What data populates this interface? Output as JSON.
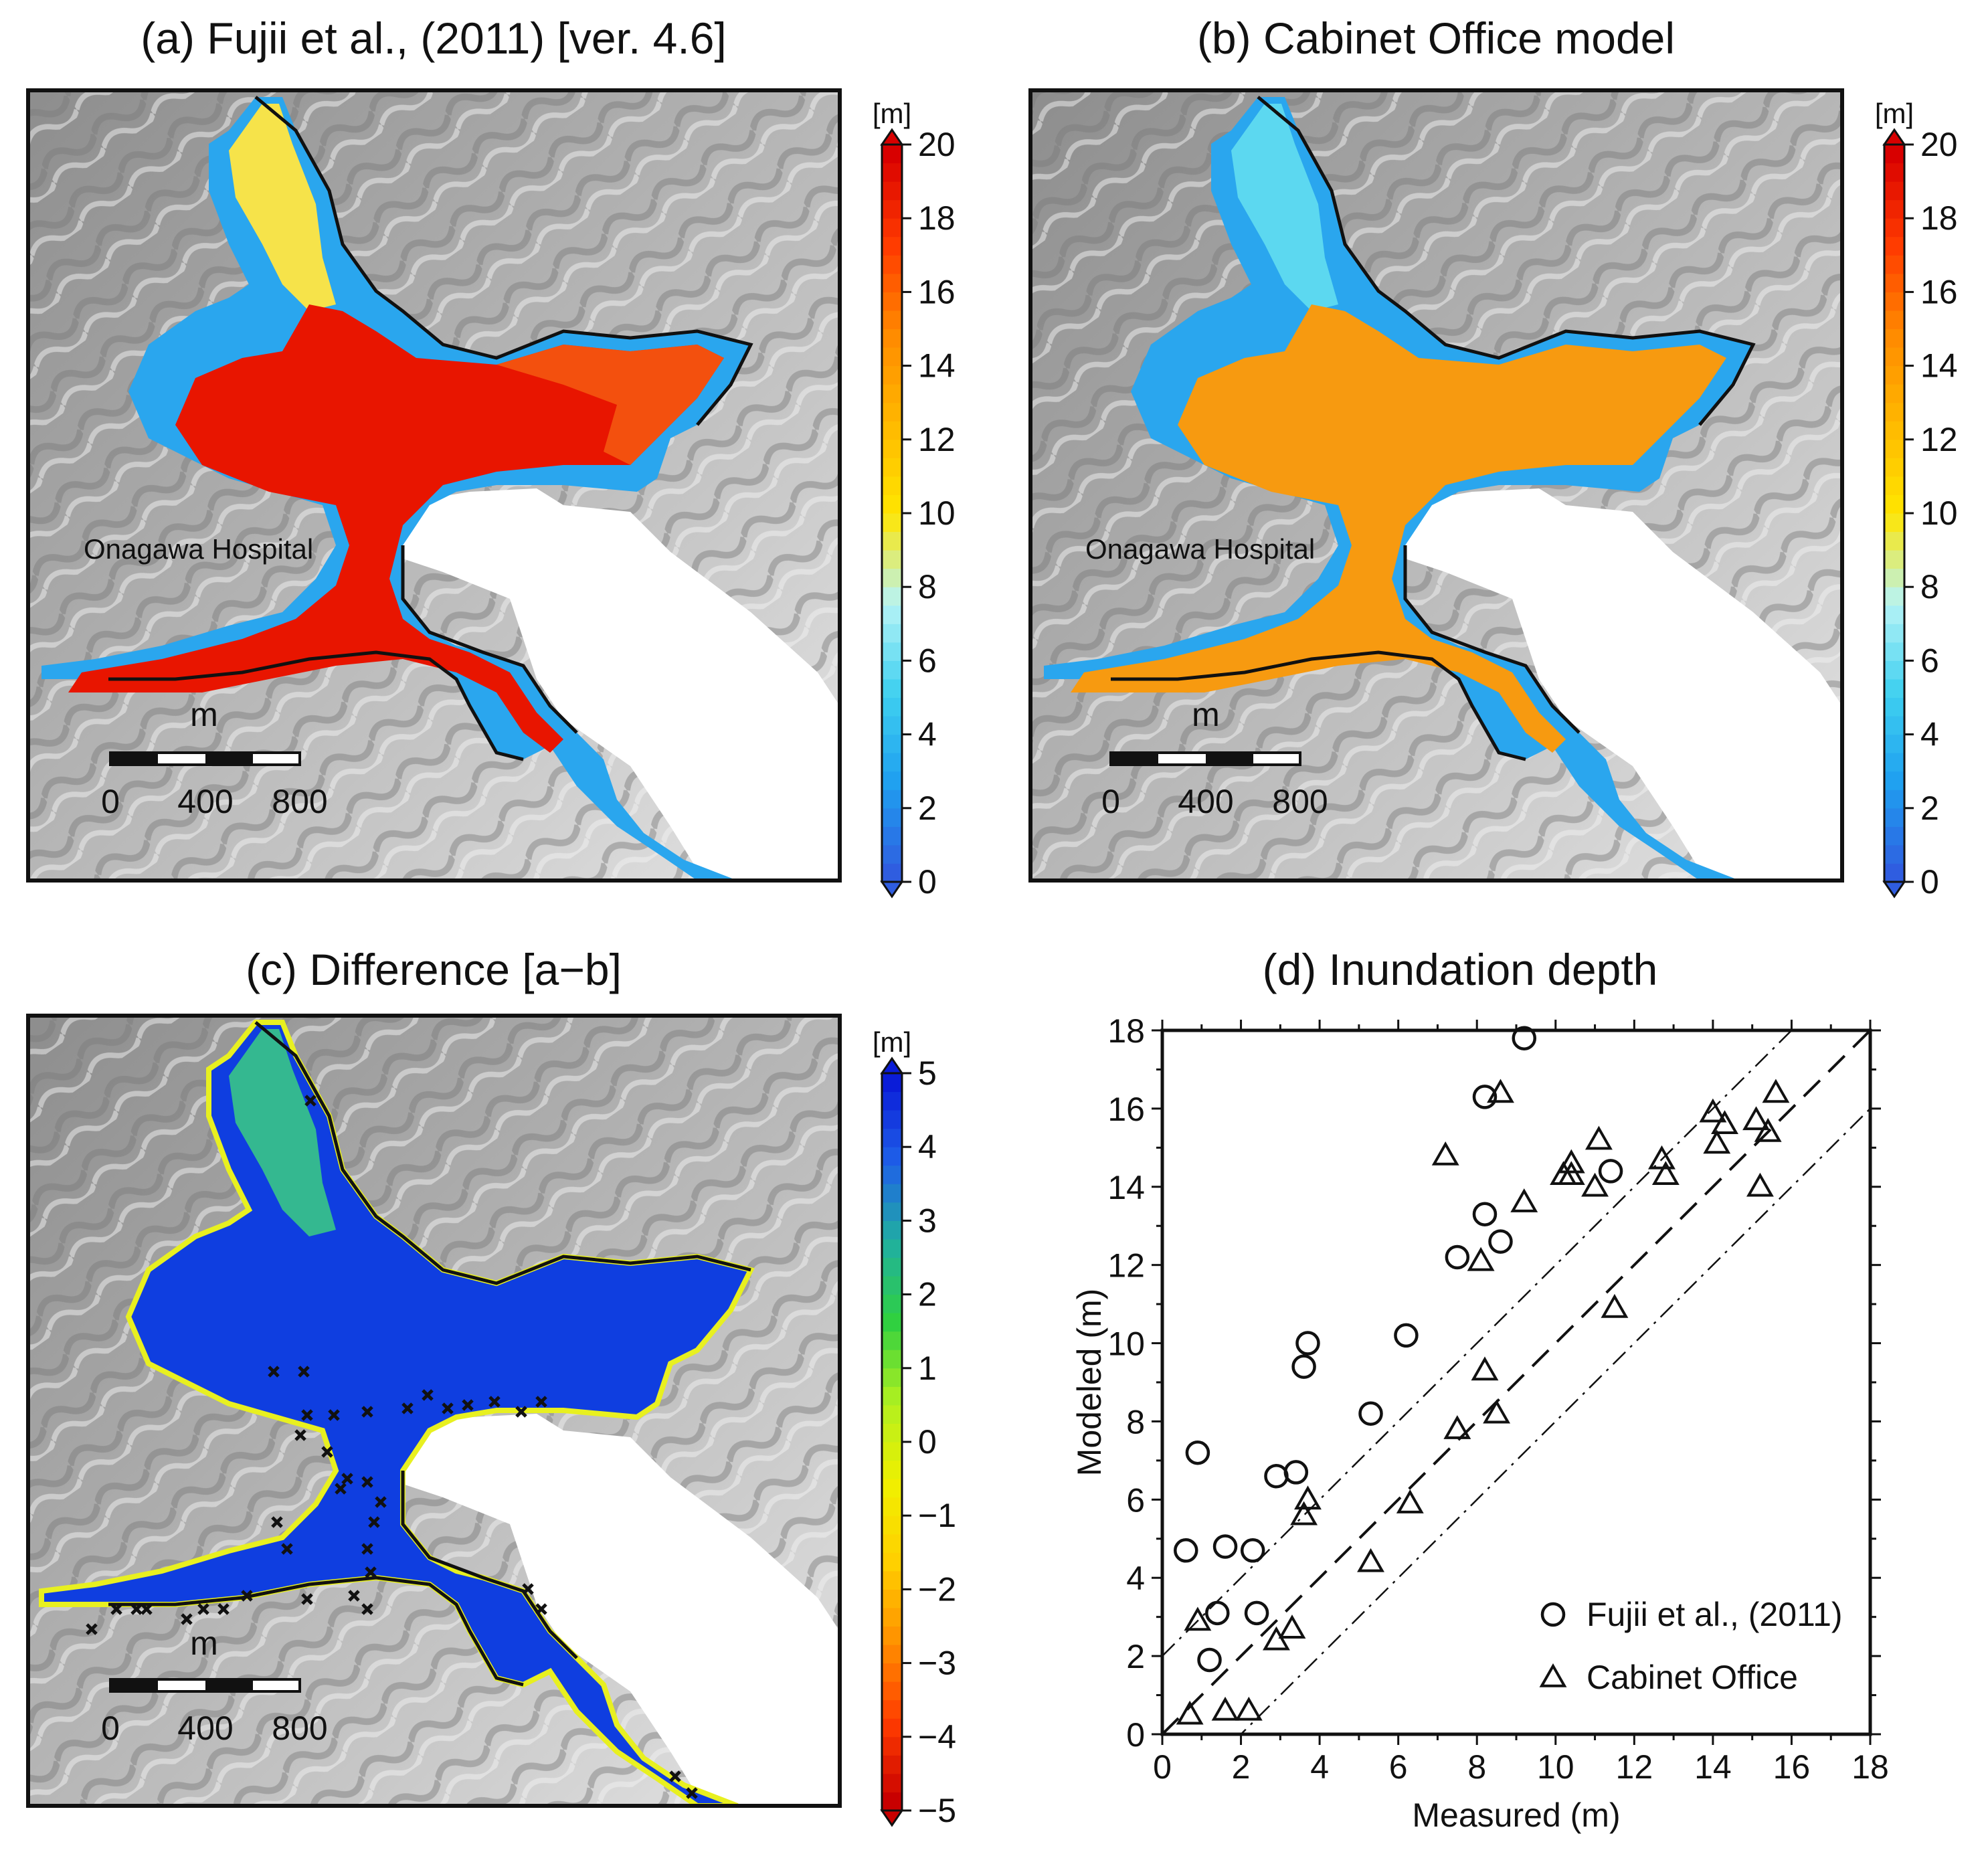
{
  "panels": {
    "a": {
      "title": "(a) Fujii et al., (2011) [ver. 4.6]",
      "place_label": "Onagawa Hospital"
    },
    "b": {
      "title": "(b) Cabinet Office model",
      "place_label": "Onagawa Hospital"
    },
    "c": {
      "title": "(c) Difference [a−b]"
    },
    "d": {
      "title": "(d) Inundation depth"
    }
  },
  "scalebar": {
    "unit": "m",
    "labels": [
      "0",
      "400",
      "800"
    ]
  },
  "colorbars": {
    "depth": {
      "unit": "[m]",
      "min": 0,
      "max": 20,
      "ticks": [
        "0",
        "2",
        "4",
        "6",
        "8",
        "10",
        "12",
        "14",
        "16",
        "18",
        "20"
      ],
      "colors": [
        "#2f5de0",
        "#1fa0f0",
        "#3fd0f0",
        "#b8f4f6",
        "#ffe600",
        "#ffb800",
        "#ff8a00",
        "#ff3a00",
        "#d80000"
      ]
    },
    "difference": {
      "unit": "[m]",
      "min": -5,
      "max": 5,
      "ticks": [
        "−5",
        "−4",
        "−3",
        "−2",
        "−1",
        "0",
        "1",
        "2",
        "3",
        "4",
        "5"
      ],
      "colors": [
        "#c80000",
        "#ff3c00",
        "#ff9000",
        "#ffd000",
        "#f0f000",
        "#b0f020",
        "#30d040",
        "#20b0a0",
        "#1f60e8",
        "#0a1cd8"
      ]
    }
  },
  "chart_data": {
    "type": "scatter",
    "title": "(d) Inundation depth",
    "xlabel": "Measured (m)",
    "ylabel": "Modeled (m)",
    "xlim": [
      0,
      18
    ],
    "ylim": [
      0,
      18
    ],
    "xticks": [
      "0",
      "2",
      "4",
      "6",
      "8",
      "10",
      "12",
      "14",
      "16",
      "18"
    ],
    "yticks": [
      "0",
      "2",
      "4",
      "6",
      "8",
      "10",
      "12",
      "14",
      "16",
      "18"
    ],
    "legend_position": "bottom-right",
    "reference_lines": [
      {
        "style": "dashed",
        "intercept": 0
      },
      {
        "style": "dash-dot",
        "intercept": 2
      },
      {
        "style": "dash-dot",
        "intercept": -2
      }
    ],
    "series": [
      {
        "name": "Fujii et al., (2011)",
        "marker": "circle",
        "x": [
          0.6,
          0.9,
          1.2,
          1.4,
          1.6,
          2.3,
          2.4,
          2.9,
          3.4,
          3.6,
          3.7,
          5.3,
          6.2,
          7.5,
          8.2,
          8.2,
          8.6,
          9.2,
          11.4
        ],
        "y": [
          4.7,
          7.2,
          1.9,
          3.1,
          4.8,
          4.7,
          3.1,
          6.6,
          6.7,
          9.4,
          10.0,
          8.2,
          10.2,
          12.2,
          13.3,
          16.3,
          12.6,
          17.8,
          14.4
        ]
      },
      {
        "name": "Cabinet Office",
        "marker": "triangle",
        "x": [
          0.7,
          0.9,
          1.6,
          2.2,
          2.9,
          3.3,
          3.6,
          3.7,
          5.3,
          6.3,
          7.2,
          7.5,
          8.1,
          8.2,
          8.5,
          8.6,
          9.2,
          10.2,
          10.4,
          10.4,
          11.0,
          11.1,
          11.5,
          12.7,
          12.8,
          14.0,
          14.1,
          14.3,
          15.1,
          15.2,
          15.4,
          15.6
        ],
        "y": [
          0.5,
          2.9,
          0.6,
          0.6,
          2.4,
          2.7,
          5.6,
          6.0,
          4.4,
          5.9,
          14.8,
          7.8,
          12.1,
          9.3,
          8.2,
          16.4,
          13.6,
          14.3,
          14.6,
          14.3,
          14.0,
          15.2,
          10.9,
          14.7,
          14.3,
          15.9,
          15.1,
          15.6,
          15.7,
          14.0,
          15.4,
          16.4
        ]
      }
    ]
  }
}
